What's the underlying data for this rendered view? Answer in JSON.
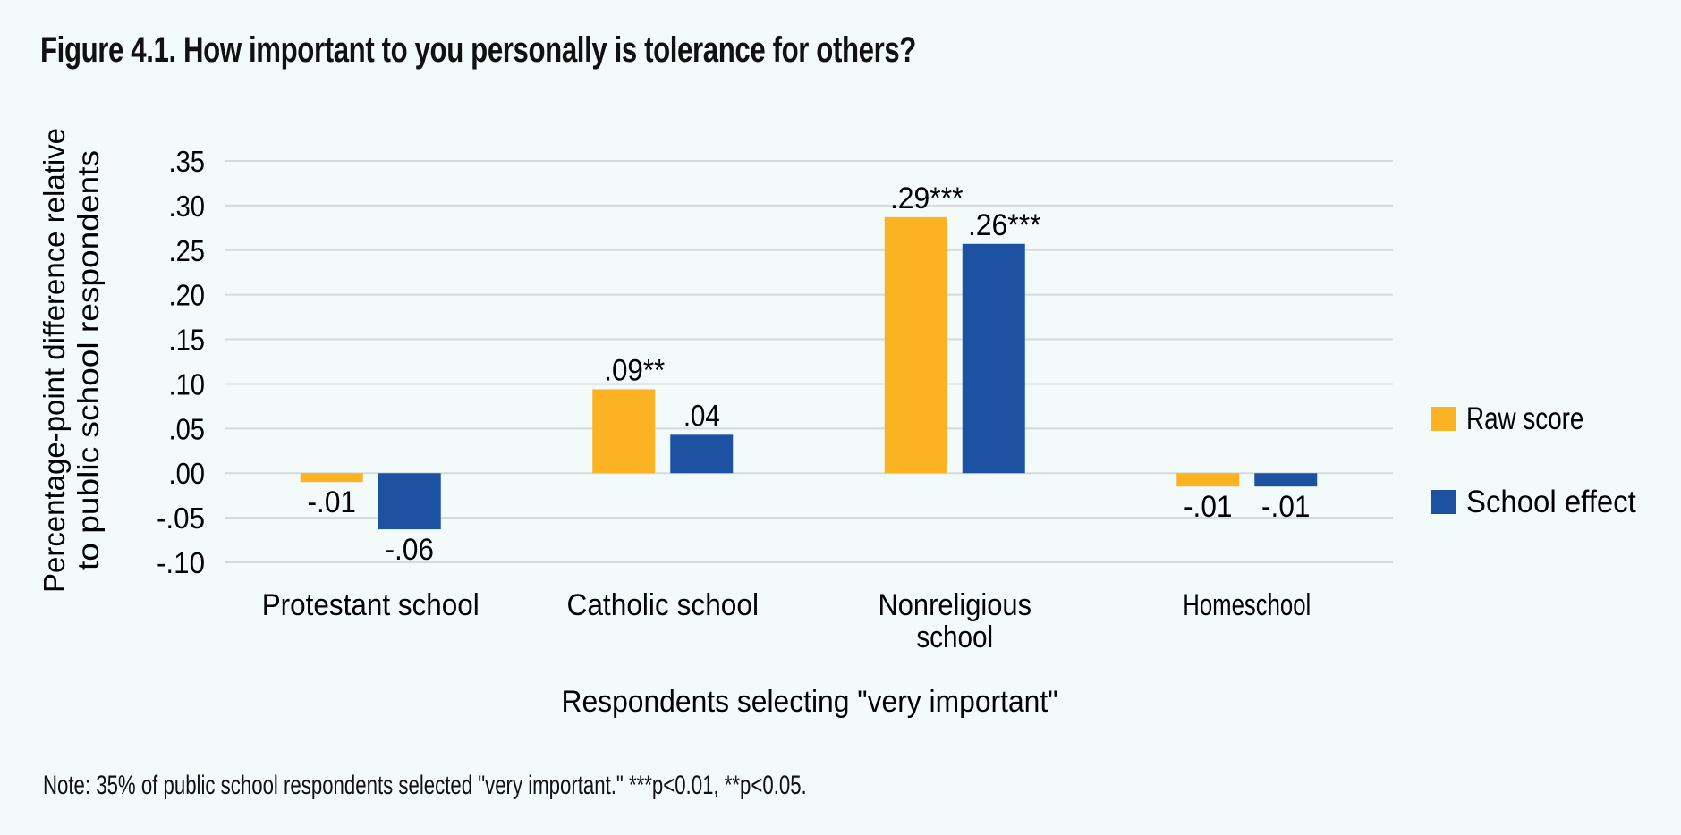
{
  "title": "Figure 4.1. How important to you personally is tolerance for others?",
  "note": "Note: 35% of public school respondents selected \"very important.\" ***p<0.01, **p<0.05.",
  "colors": {
    "raw_score": "#fbb324",
    "school_effect": "#1d52a2",
    "gridline": "#d6d9da",
    "background": "#f2fbfa"
  },
  "chart_data": {
    "type": "bar",
    "title": "Figure 4.1. How important to you personally is tolerance for others?",
    "xlabel": "Respondents selecting \"very important\"",
    "ylabel": "Percentage-point difference relative to public school respondents",
    "ylabel_lines": [
      "Percentage-point difference relative",
      "to public school respondents"
    ],
    "ylim": [
      -0.1,
      0.35
    ],
    "yticks": [
      0.35,
      0.3,
      0.25,
      0.2,
      0.15,
      0.1,
      0.05,
      0.0,
      -0.05,
      -0.1
    ],
    "ytick_labels": [
      ".35",
      ".30",
      ".25",
      ".20",
      ".15",
      ".10",
      ".05",
      ".00",
      "-.05",
      "-.10"
    ],
    "grid": true,
    "legend_position": "right",
    "categories": [
      "Protestant school",
      "Catholic school",
      "Nonreligious school",
      "Homeschool"
    ],
    "category_label_lines": [
      [
        "Protestant school"
      ],
      [
        "Catholic school"
      ],
      [
        "Nonreligious",
        "school"
      ],
      [
        "Homeschool"
      ]
    ],
    "series": [
      {
        "name": "Raw score",
        "color": "#fbb324",
        "values": [
          -0.01,
          0.094,
          0.287,
          -0.015
        ],
        "labels": [
          "-.01",
          ".09**",
          ".29***",
          "-.01"
        ]
      },
      {
        "name": "School effect",
        "color": "#1d52a2",
        "values": [
          -0.063,
          0.043,
          0.257,
          -0.015
        ],
        "labels": [
          "-.06",
          ".04",
          ".26***",
          "-.01"
        ]
      }
    ]
  }
}
